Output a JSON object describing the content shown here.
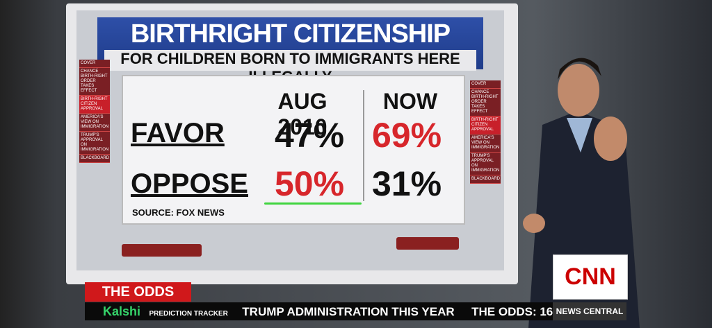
{
  "board": {
    "title": "BIRTHRIGHT CITIZENSHIP",
    "subtitle": "FOR CHILDREN BORN TO IMMIGRANTS HERE ILLEGALLY",
    "table": {
      "columns": [
        "AUG 2010",
        "NOW"
      ],
      "rows": [
        {
          "label": "FAVOR",
          "values": [
            "47%",
            "69%"
          ]
        },
        {
          "label": "OPPOSE",
          "values": [
            "50%",
            "31%"
          ]
        }
      ]
    },
    "source": "SOURCE: FOX NEWS",
    "menu": [
      "COVER",
      "CHANCE BIRTH-RIGHT ORDER TAKES EFFECT",
      "BIRTH-RIGHT CITIZEN APPROVAL",
      "AMERICA'S VIEW ON IMMIGRATION",
      "TRUMP'S APPROVAL ON IMMIGRATION",
      "BLACKBOARD"
    ]
  },
  "lower_third": {
    "tag": "THE ODDS",
    "brand": "Kalshi",
    "brand_sub": "PREDICTION TRACKER",
    "ticker": "TRUMP ADMINISTRATION THIS YEAR",
    "ticker_next": "THE ODDS: 16",
    "logo": "CNN",
    "show": "NEWS CENTRAL"
  }
}
